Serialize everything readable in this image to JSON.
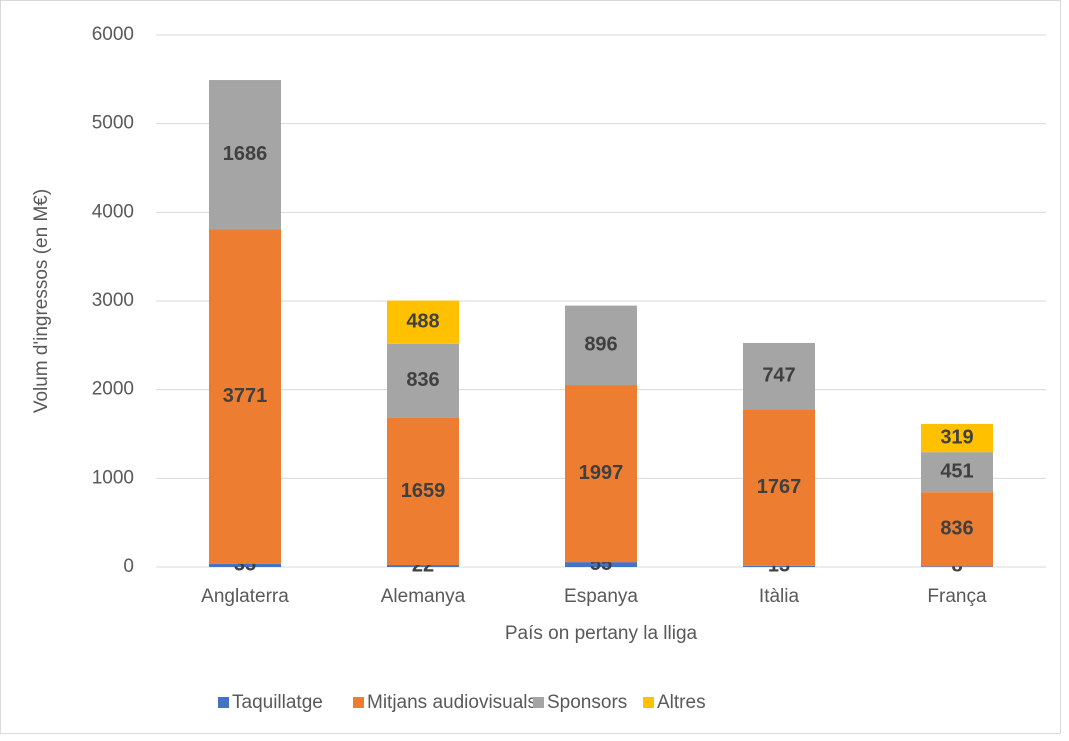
{
  "chart_data": {
    "type": "stacked_bar",
    "categories": [
      "Anglaterra",
      "Alemanya",
      "Espanya",
      "Itàlia",
      "França"
    ],
    "series": [
      {
        "name": "Taquillatge",
        "color": "#4472c4",
        "values": [
          35,
          22,
          55,
          13,
          8
        ]
      },
      {
        "name": "Mitjans audiovisuals",
        "color": "#ed7d31",
        "values": [
          3771,
          1659,
          1997,
          1767,
          836
        ]
      },
      {
        "name": "Sponsors",
        "color": "#a5a5a5",
        "values": [
          1686,
          836,
          896,
          747,
          451
        ]
      },
      {
        "name": "Altres",
        "color": "#ffc000",
        "values": [
          null,
          488,
          null,
          null,
          319
        ]
      }
    ],
    "ylabel": "Volum d'ingressos (en M€)",
    "xlabel": "País on pertany la lliga",
    "ylim": [
      0,
      6000
    ],
    "yticks": [
      0,
      1000,
      2000,
      3000,
      4000,
      5000,
      6000
    ],
    "grid": true,
    "legend": "bottom"
  }
}
